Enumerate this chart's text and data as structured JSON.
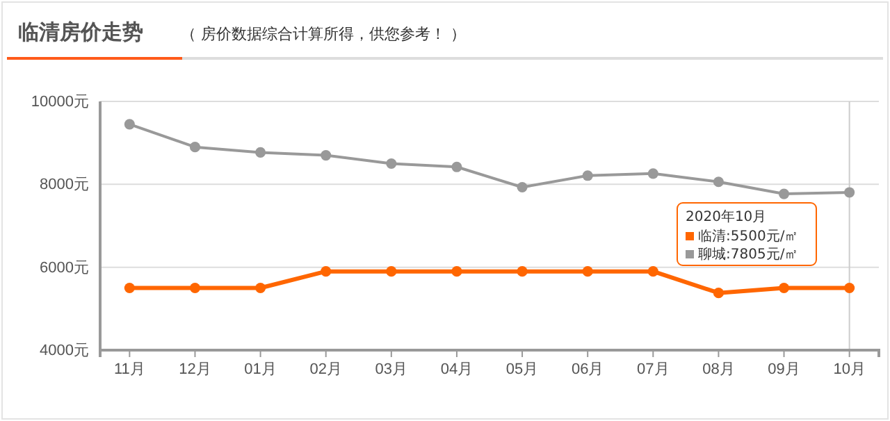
{
  "chart_data": {
    "type": "line",
    "title": "临清房价走势",
    "subtitle": "（ 房价数据综合计算所得，供您参考！ ）",
    "categories": [
      "11月",
      "12月",
      "01月",
      "02月",
      "03月",
      "04月",
      "05月",
      "06月",
      "07月",
      "08月",
      "09月",
      "10月"
    ],
    "series": [
      {
        "name": "临清",
        "color": "#ff6600",
        "values": [
          5500,
          5500,
          5500,
          5900,
          5900,
          5900,
          5900,
          5900,
          5900,
          5380,
          5500,
          5500
        ]
      },
      {
        "name": "聊城",
        "color": "#999999",
        "values": [
          9450,
          8900,
          8770,
          8700,
          8500,
          8420,
          7930,
          8210,
          8260,
          8060,
          7770,
          7805
        ]
      }
    ],
    "annotations": [
      ":5500元/㎡",
      ":7805元/㎡"
    ],
    "ylim": [
      4000,
      10000
    ],
    "yticks": [
      {
        "value": 4000,
        "label": "4000元"
      },
      {
        "value": 6000,
        "label": "6000元"
      },
      {
        "value": 8000,
        "label": "8000元"
      },
      {
        "value": 10000,
        "label": "10000元"
      }
    ],
    "grid": "y",
    "marker": "circle",
    "line_style": "solid",
    "legend": "right",
    "legend_title": "2020年10月",
    "ref_lines": [
      {
        "axis": "x",
        "value": "10月",
        "color": "#cccccc"
      }
    ]
  }
}
